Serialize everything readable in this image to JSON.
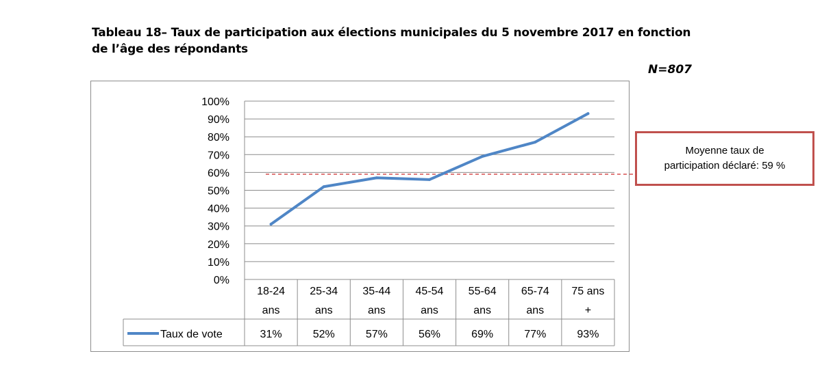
{
  "header": {
    "title_line1": "Tableau 18– Taux de participation aux élections municipales du 5 novembre 2017 en fonction",
    "title_line2": "de l’âge des répondants",
    "n_label": "N=807"
  },
  "callout": {
    "line1": "Moyenne taux de",
    "line2": "participation déclaré: 59 %"
  },
  "chart_data": {
    "type": "line",
    "categories": [
      [
        "18-24",
        "ans"
      ],
      [
        "25-34",
        "ans"
      ],
      [
        "35-44",
        "ans"
      ],
      [
        "45-54",
        "ans"
      ],
      [
        "55-64",
        "ans"
      ],
      [
        "65-74",
        "ans"
      ],
      [
        "75 ans",
        "+"
      ]
    ],
    "series": [
      {
        "name": "Taux de vote",
        "values": [
          31,
          52,
          57,
          56,
          69,
          77,
          93
        ],
        "labels": [
          "31%",
          "52%",
          "57%",
          "56%",
          "69%",
          "77%",
          "93%"
        ],
        "color": "#4f86c6"
      }
    ],
    "reference_line": {
      "value": 59,
      "color": "#e07b7b",
      "style": "dashed"
    },
    "ylim": [
      0,
      100
    ],
    "yticks": [
      "0%",
      "10%",
      "20%",
      "30%",
      "40%",
      "50%",
      "60%",
      "70%",
      "80%",
      "90%",
      "100%"
    ],
    "grid": true,
    "data_table": true,
    "colors": {
      "grid": "#8c8c8c",
      "callout_border": "#c0504d"
    }
  }
}
